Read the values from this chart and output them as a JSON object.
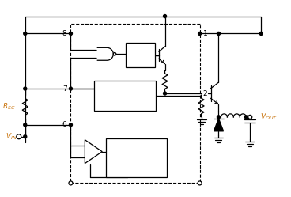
{
  "bg_color": "#ffffff",
  "lc": "#000000",
  "orange": "#c8720a",
  "fig_w": 3.68,
  "fig_h": 2.49,
  "dpi": 100
}
